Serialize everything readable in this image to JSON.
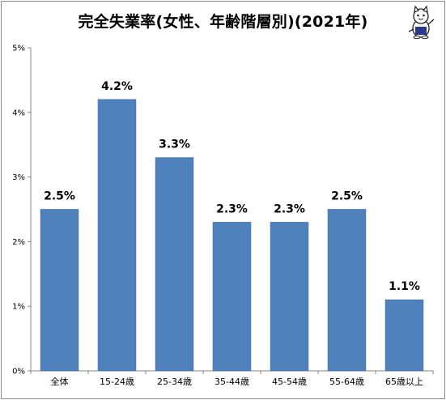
{
  "title": "完全失業率(女性、年齢階層別)(2021年)",
  "logo": {
    "icon": "cat-mascot-icon"
  },
  "colors": {
    "bar": "#4f81bd",
    "bar_edge": "#3f6a9e",
    "axis": "#868686",
    "grid": "#d9d9d9"
  },
  "chart_data": {
    "type": "bar",
    "categories": [
      "全体",
      "15-24歳",
      "25-34歳",
      "35-44歳",
      "45-54歳",
      "55-64歳",
      "65歳以上"
    ],
    "values": [
      2.5,
      4.2,
      3.3,
      2.3,
      2.3,
      2.5,
      1.1
    ],
    "value_labels": [
      "2.5%",
      "4.2%",
      "3.3%",
      "2.3%",
      "2.3%",
      "2.5%",
      "1.1%"
    ],
    "yticks": [
      "0%",
      "1%",
      "2%",
      "3%",
      "4%",
      "5%"
    ],
    "ylim": [
      0,
      5
    ],
    "grid": false,
    "legend": "none"
  }
}
